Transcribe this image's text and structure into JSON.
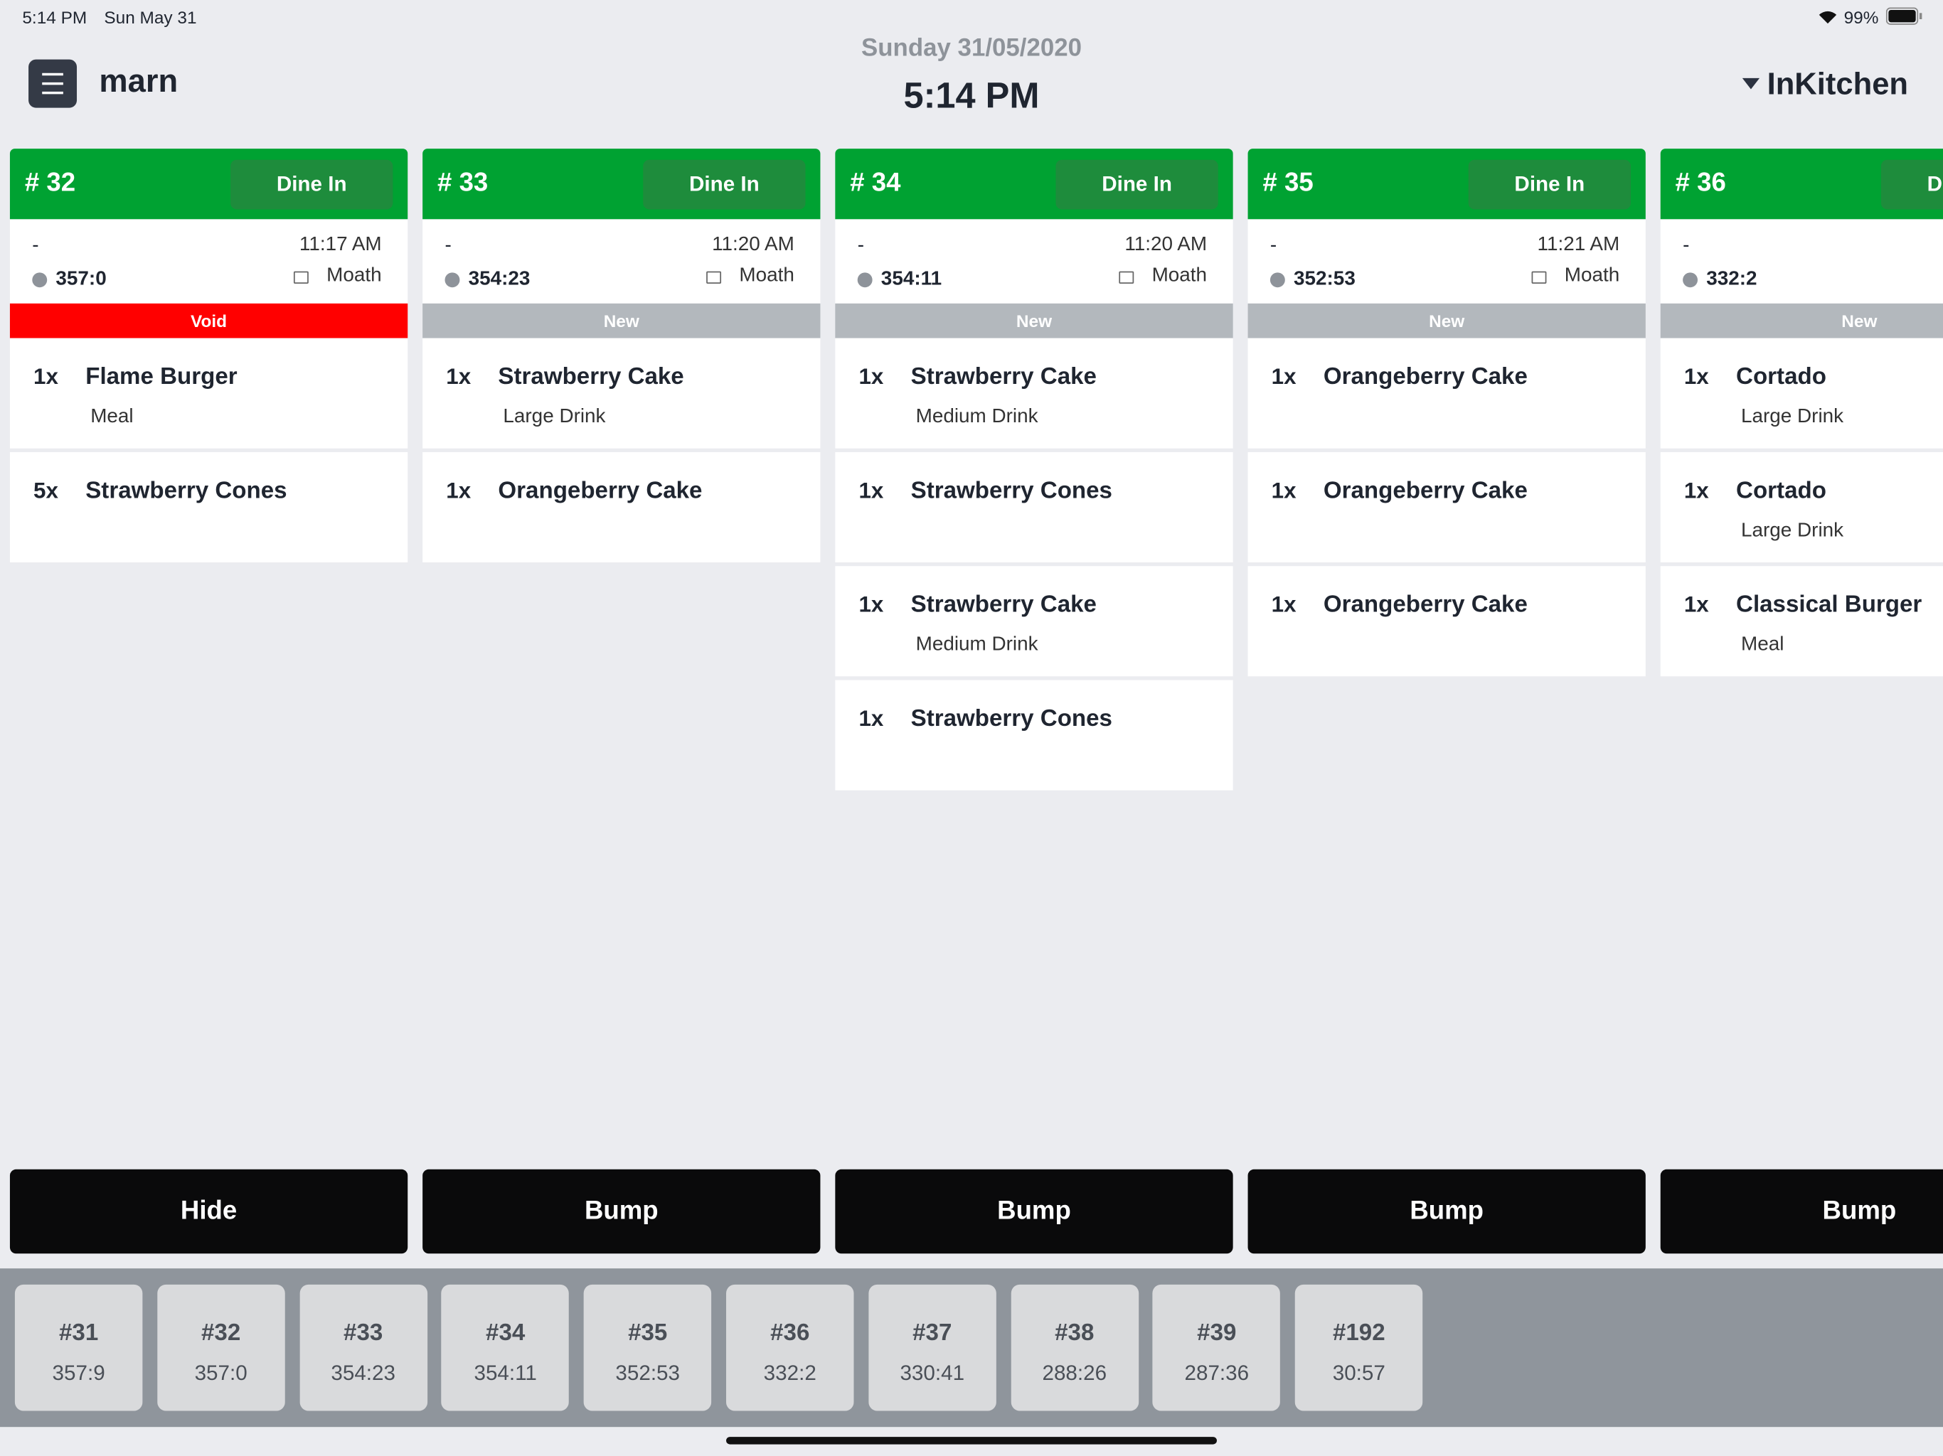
{
  "status_bar": {
    "time": "5:14 PM",
    "date": "Sun May 31",
    "battery": "99%"
  },
  "header": {
    "brand": "marn",
    "date": "Sunday 31/05/2020",
    "time": "5:14 PM",
    "station": "InKitchen"
  },
  "orders": [
    {
      "number": "# 32",
      "type": "Dine In",
      "dash": "-",
      "time": "11:17 AM",
      "timer": "357:0",
      "server": "Moath",
      "status": "Void",
      "status_color": "#ff0000",
      "items": [
        {
          "qty": "1x",
          "name": "Flame Burger",
          "modifier": "Meal"
        },
        {
          "qty": "5x",
          "name": "Strawberry Cones"
        }
      ],
      "action": "Hide"
    },
    {
      "number": "# 33",
      "type": "Dine In",
      "dash": "-",
      "time": "11:20 AM",
      "timer": "354:23",
      "server": "Moath",
      "status": "New",
      "status_color": "#b3b8bd",
      "items": [
        {
          "qty": "1x",
          "name": "Strawberry Cake",
          "modifier": "Large Drink"
        },
        {
          "qty": "1x",
          "name": "Orangeberry Cake"
        }
      ],
      "action": "Bump"
    },
    {
      "number": "# 34",
      "type": "Dine In",
      "dash": "-",
      "time": "11:20 AM",
      "timer": "354:11",
      "server": "Moath",
      "status": "New",
      "status_color": "#b3b8bd",
      "items": [
        {
          "qty": "1x",
          "name": "Strawberry Cake",
          "modifier": "Medium Drink"
        },
        {
          "qty": "1x",
          "name": "Strawberry Cones"
        },
        {
          "qty": "1x",
          "name": "Strawberry Cake",
          "modifier": "Medium Drink"
        },
        {
          "qty": "1x",
          "name": "Strawberry Cones"
        }
      ],
      "action": "Bump"
    },
    {
      "number": "# 35",
      "type": "Dine In",
      "dash": "-",
      "time": "11:21 AM",
      "timer": "352:53",
      "server": "Moath",
      "status": "New",
      "status_color": "#b3b8bd",
      "items": [
        {
          "qty": "1x",
          "name": "Orangeberry Cake"
        },
        {
          "qty": "1x",
          "name": "Orangeberry Cake"
        },
        {
          "qty": "1x",
          "name": "Orangeberry Cake"
        }
      ],
      "action": "Bump"
    },
    {
      "number": "# 36",
      "type": "Dine In",
      "dash": "-",
      "timer": "332:2",
      "status": "New",
      "status_color": "#b3b8bd",
      "items": [
        {
          "qty": "1x",
          "name": "Cortado",
          "modifier": "Large Drink"
        },
        {
          "qty": "1x",
          "name": "Cortado",
          "modifier": "Large Drink"
        },
        {
          "qty": "1x",
          "name": "Classical Burger",
          "modifier": "Meal"
        }
      ],
      "action": "Bump"
    }
  ],
  "tabs": [
    {
      "number": "#31",
      "timer": "357:9"
    },
    {
      "number": "#32",
      "timer": "357:0"
    },
    {
      "number": "#33",
      "timer": "354:23"
    },
    {
      "number": "#34",
      "timer": "354:11"
    },
    {
      "number": "#35",
      "timer": "352:53"
    },
    {
      "number": "#36",
      "timer": "332:2"
    },
    {
      "number": "#37",
      "timer": "330:41"
    },
    {
      "number": "#38",
      "timer": "288:26"
    },
    {
      "number": "#39",
      "timer": "287:36"
    },
    {
      "number": "#192",
      "timer": "30:57"
    }
  ]
}
